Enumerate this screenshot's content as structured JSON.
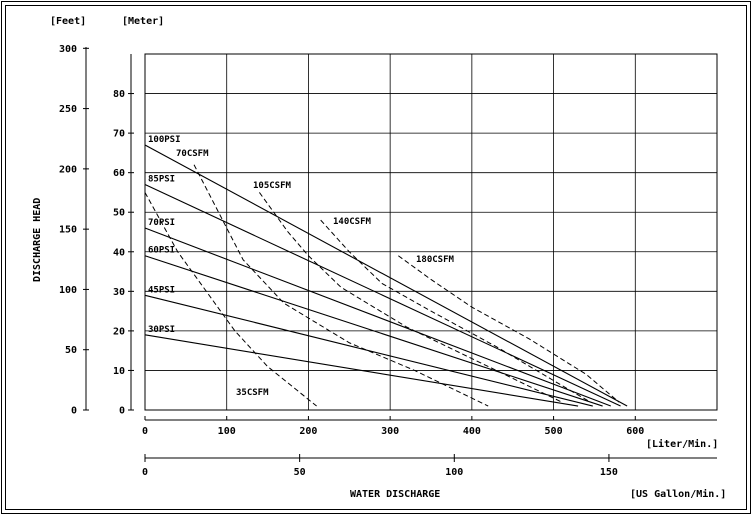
{
  "chart_data": {
    "type": "line",
    "title": "",
    "xlabel": "WATER DISCHARGE",
    "ylabel": "DISCHARGE HEAD",
    "x_unit_primary": "[Liter/Min.]",
    "x_unit_secondary": "[US Gallon/Min.]",
    "y_unit_left": "[Feet]",
    "y_unit_right": "[Meter]",
    "xlim": [
      0,
      700
    ],
    "ylim_meter": [
      0,
      90
    ],
    "x_ticks": [
      "0",
      "100",
      "200",
      "300",
      "400",
      "500",
      "600"
    ],
    "x_ticks_gallon": [
      "0",
      "50",
      "100",
      "150"
    ],
    "y_ticks_meter": [
      "0",
      "10",
      "20",
      "30",
      "40",
      "50",
      "60",
      "70",
      "80"
    ],
    "y_ticks_feet": [
      "0",
      "50",
      "100",
      "150",
      "200",
      "250",
      "300"
    ],
    "pressure_series": [
      {
        "name": "100PSI",
        "points": [
          [
            0,
            67
          ],
          [
            590,
            1
          ]
        ]
      },
      {
        "name": "85PSI",
        "points": [
          [
            0,
            57
          ],
          [
            582,
            1
          ]
        ]
      },
      {
        "name": "70PSI",
        "points": [
          [
            0,
            46
          ],
          [
            570,
            1
          ]
        ]
      },
      {
        "name": "60PSI",
        "points": [
          [
            0,
            39
          ],
          [
            560,
            1
          ]
        ]
      },
      {
        "name": "45PSI",
        "points": [
          [
            0,
            29
          ],
          [
            548,
            1
          ]
        ]
      },
      {
        "name": "30PSI",
        "points": [
          [
            0,
            19
          ],
          [
            530,
            1
          ]
        ]
      }
    ],
    "air_series": [
      {
        "name": "35CSFM",
        "points": [
          [
            0,
            55
          ],
          [
            40,
            40
          ],
          [
            75,
            30
          ],
          [
            110,
            20
          ],
          [
            150,
            11
          ],
          [
            210,
            1
          ]
        ]
      },
      {
        "name": "70CSFM",
        "points": [
          [
            60,
            62
          ],
          [
            90,
            50
          ],
          [
            120,
            38
          ],
          [
            170,
            27
          ],
          [
            250,
            17
          ],
          [
            330,
            10
          ],
          [
            420,
            1
          ]
        ]
      },
      {
        "name": "105CSFM",
        "points": [
          [
            140,
            55
          ],
          [
            175,
            45
          ],
          [
            200,
            39
          ],
          [
            240,
            31
          ],
          [
            320,
            21
          ],
          [
            410,
            12
          ],
          [
            510,
            2
          ]
        ]
      },
      {
        "name": "140CSFM",
        "points": [
          [
            215,
            48
          ],
          [
            250,
            40
          ],
          [
            290,
            32
          ],
          [
            350,
            25
          ],
          [
            430,
            16
          ],
          [
            520,
            5
          ],
          [
            545,
            2
          ]
        ]
      },
      {
        "name": "180CSFM",
        "points": [
          [
            310,
            39
          ],
          [
            350,
            33
          ],
          [
            400,
            26
          ],
          [
            470,
            18
          ],
          [
            540,
            9
          ],
          [
            580,
            2
          ]
        ]
      }
    ],
    "grid": true
  }
}
